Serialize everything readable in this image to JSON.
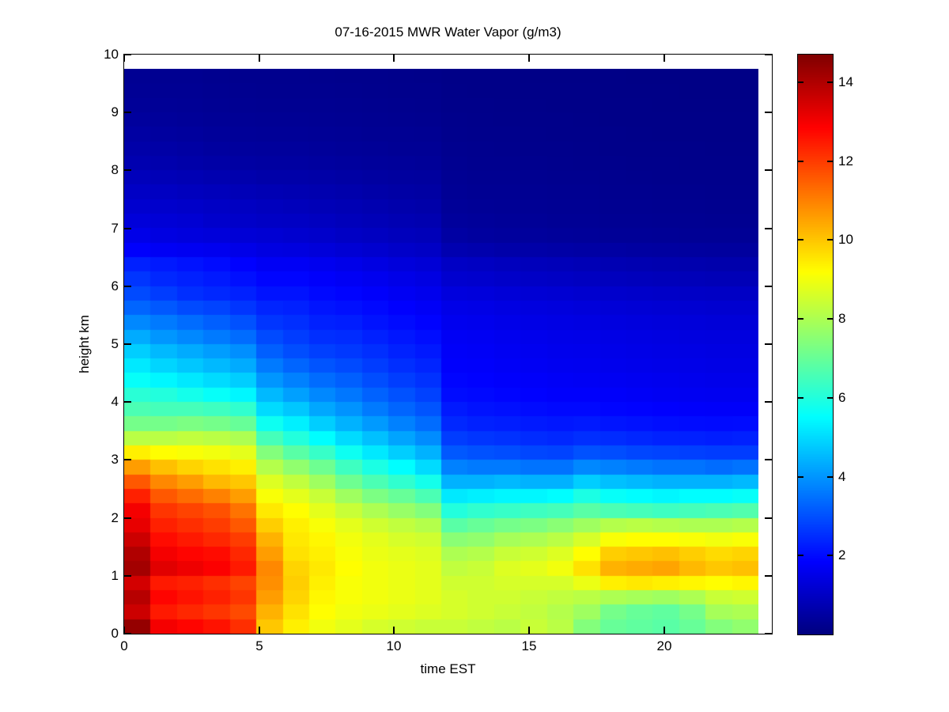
{
  "figure": {
    "background": "#ffffff"
  },
  "chart_data": {
    "type": "heatmap",
    "title": "07-16-2015 MWR Water Vapor (g/m3)",
    "xlabel": "time EST",
    "ylabel": "height km",
    "xlim": [
      0,
      24
    ],
    "ylim": [
      0,
      10
    ],
    "xtick_values": [
      0,
      5,
      10,
      15,
      20
    ],
    "xtick_labels": [
      "0",
      "5",
      "10",
      "15",
      "20"
    ],
    "ytick_values": [
      0,
      1,
      2,
      3,
      4,
      5,
      6,
      7,
      8,
      9,
      10
    ],
    "ytick_labels": [
      "0",
      "1",
      "2",
      "3",
      "4",
      "5",
      "6",
      "7",
      "8",
      "9",
      "10"
    ],
    "grid_on": false,
    "legend": "colorbar-right",
    "colorbar": {
      "tick_values": [
        2,
        4,
        6,
        8,
        10,
        12,
        14
      ],
      "tick_labels": [
        "2",
        "4",
        "6",
        "8",
        "10",
        "12",
        "14"
      ],
      "vmin": 0,
      "vmax": 14.7
    },
    "colormap": {
      "name": "jet",
      "stops": [
        [
          0.0,
          "#000080"
        ],
        [
          0.125,
          "#0000ff"
        ],
        [
          0.375,
          "#00ffff"
        ],
        [
          0.625,
          "#ffff00"
        ],
        [
          0.875,
          "#ff0000"
        ],
        [
          1.0,
          "#800000"
        ]
      ]
    },
    "grid": {
      "hours": [
        0,
        1,
        2,
        3,
        4,
        5,
        6,
        7,
        8,
        9,
        10,
        11,
        12,
        13,
        14,
        15,
        16,
        17,
        18,
        19,
        20,
        21,
        22,
        23
      ],
      "z0_km": 0,
      "dz_km": 0.25,
      "nz": 39,
      "x_extent": [
        0,
        23.5
      ],
      "z_extent": [
        0,
        9.75
      ]
    },
    "values_g_m3_by_hour_bottom_up": [
      [
        14.4,
        13.6,
        13.9,
        13.5,
        14.2,
        14.0,
        13.6,
        13.2,
        13.0,
        12.4,
        11.6,
        10.6,
        9.4,
        8.2,
        7.2,
        6.6,
        6.1,
        5.6,
        5.2,
        4.8,
        4.3,
        3.8,
        3.3,
        2.9,
        2.6,
        2.3,
        1.8,
        1.5,
        1.3,
        1.15,
        1.0,
        0.85,
        0.7,
        0.6,
        0.5,
        0.42,
        0.35,
        0.3,
        0.28
      ],
      [
        13.0,
        12.5,
        12.8,
        12.5,
        13.3,
        13.0,
        12.7,
        12.4,
        12.1,
        11.6,
        10.9,
        10.1,
        9.2,
        8.2,
        7.2,
        6.5,
        6.0,
        5.4,
        4.9,
        4.5,
        4.0,
        3.6,
        3.1,
        2.7,
        2.4,
        2.2,
        1.7,
        1.4,
        1.25,
        1.1,
        0.95,
        0.8,
        0.65,
        0.55,
        0.45,
        0.38,
        0.32,
        0.28,
        0.25
      ],
      [
        12.8,
        12.3,
        12.6,
        12.4,
        13.1,
        12.8,
        12.5,
        12.2,
        11.9,
        11.3,
        10.6,
        9.8,
        9.1,
        8.3,
        7.3,
        6.5,
        5.8,
        5.2,
        4.7,
        4.3,
        3.8,
        3.4,
        2.9,
        2.5,
        2.3,
        2.1,
        1.65,
        1.35,
        1.2,
        1.05,
        0.9,
        0.75,
        0.6,
        0.5,
        0.42,
        0.35,
        0.3,
        0.27,
        0.24
      ],
      [
        12.6,
        12.1,
        12.4,
        12.2,
        12.9,
        12.7,
        12.3,
        12.0,
        11.7,
        11.0,
        10.2,
        9.6,
        9.0,
        8.2,
        7.2,
        6.4,
        5.6,
        5.0,
        4.5,
        4.1,
        3.6,
        3.2,
        2.8,
        2.4,
        2.2,
        2.0,
        1.6,
        1.3,
        1.1,
        1.0,
        0.85,
        0.7,
        0.55,
        0.45,
        0.38,
        0.32,
        0.28,
        0.25,
        0.22
      ],
      [
        12.2,
        11.8,
        12.1,
        11.9,
        12.5,
        12.3,
        12.0,
        11.6,
        11.2,
        10.6,
        10.0,
        9.4,
        8.8,
        8.0,
        7.0,
        6.2,
        5.4,
        4.8,
        4.3,
        3.9,
        3.4,
        3.0,
        2.6,
        2.3,
        2.05,
        1.85,
        1.5,
        1.25,
        1.05,
        0.95,
        0.8,
        0.65,
        0.5,
        0.42,
        0.35,
        0.3,
        0.26,
        0.23,
        0.2
      ],
      [
        10.0,
        10.3,
        10.6,
        10.8,
        10.9,
        10.6,
        10.3,
        9.9,
        9.5,
        9.1,
        8.7,
        8.1,
        7.4,
        6.5,
        5.7,
        5.0,
        4.5,
        4.0,
        3.6,
        3.2,
        2.9,
        2.6,
        2.35,
        2.1,
        1.9,
        1.7,
        1.4,
        1.2,
        1.0,
        0.9,
        0.75,
        0.6,
        0.48,
        0.4,
        0.34,
        0.29,
        0.25,
        0.22,
        0.2
      ],
      [
        9.4,
        9.6,
        9.8,
        9.9,
        9.8,
        9.6,
        9.5,
        9.4,
        9.2,
        8.8,
        8.3,
        7.6,
        6.8,
        6.0,
        5.3,
        4.7,
        4.15,
        3.7,
        3.3,
        2.95,
        2.7,
        2.5,
        2.3,
        2.1,
        1.9,
        1.7,
        1.38,
        1.15,
        0.98,
        0.86,
        0.72,
        0.6,
        0.48,
        0.4,
        0.34,
        0.29,
        0.25,
        0.22,
        0.2
      ],
      [
        9.0,
        9.2,
        9.3,
        9.4,
        9.5,
        9.4,
        9.3,
        9.1,
        8.8,
        8.4,
        7.8,
        7.1,
        6.3,
        5.5,
        4.8,
        4.25,
        3.8,
        3.4,
        3.05,
        2.75,
        2.5,
        2.3,
        2.12,
        1.95,
        1.78,
        1.6,
        1.3,
        1.08,
        0.92,
        0.8,
        0.68,
        0.56,
        0.45,
        0.38,
        0.32,
        0.27,
        0.24,
        0.21,
        0.19
      ],
      [
        8.8,
        9.0,
        9.1,
        9.1,
        9.2,
        9.1,
        9.0,
        8.8,
        8.4,
        7.8,
        7.1,
        6.4,
        5.7,
        5.0,
        4.4,
        3.95,
        3.55,
        3.2,
        2.9,
        2.65,
        2.45,
        2.25,
        2.05,
        1.88,
        1.7,
        1.52,
        1.22,
        1.0,
        0.86,
        0.75,
        0.63,
        0.52,
        0.42,
        0.35,
        0.3,
        0.26,
        0.23,
        0.2,
        0.18
      ],
      [
        8.6,
        8.9,
        9.0,
        9.0,
        9.0,
        8.9,
        8.8,
        8.5,
        8.0,
        7.3,
        6.6,
        5.9,
        5.2,
        4.6,
        4.05,
        3.6,
        3.25,
        2.95,
        2.7,
        2.5,
        2.3,
        2.1,
        1.95,
        1.78,
        1.6,
        1.42,
        1.14,
        0.94,
        0.8,
        0.7,
        0.58,
        0.48,
        0.39,
        0.33,
        0.28,
        0.24,
        0.21,
        0.19,
        0.17
      ],
      [
        8.5,
        8.8,
        8.9,
        8.9,
        8.9,
        8.8,
        8.6,
        8.3,
        7.7,
        7.0,
        6.2,
        5.5,
        4.8,
        4.2,
        3.7,
        3.3,
        3.0,
        2.72,
        2.5,
        2.32,
        2.15,
        1.98,
        1.82,
        1.66,
        1.5,
        1.32,
        1.05,
        0.87,
        0.74,
        0.64,
        0.54,
        0.45,
        0.37,
        0.31,
        0.27,
        0.23,
        0.2,
        0.18,
        0.16
      ],
      [
        8.4,
        8.7,
        8.8,
        8.8,
        8.8,
        8.7,
        8.5,
        8.1,
        7.4,
        6.6,
        5.8,
        5.0,
        4.4,
        3.85,
        3.4,
        3.05,
        2.78,
        2.55,
        2.35,
        2.18,
        2.02,
        1.87,
        1.72,
        1.57,
        1.42,
        1.25,
        1.0,
        0.82,
        0.7,
        0.6,
        0.51,
        0.43,
        0.35,
        0.3,
        0.26,
        0.22,
        0.19,
        0.17,
        0.15
      ],
      [
        8.4,
        8.6,
        8.6,
        8.5,
        8.3,
        8.0,
        7.5,
        6.8,
        6.0,
        5.2,
        4.4,
        3.7,
        3.1,
        2.7,
        2.4,
        2.2,
        2.0,
        1.9,
        1.8,
        1.75,
        1.7,
        1.6,
        1.5,
        1.35,
        1.15,
        1.0,
        0.7,
        0.5,
        0.4,
        0.35,
        0.3,
        0.27,
        0.24,
        0.21,
        0.19,
        0.17,
        0.15,
        0.13,
        0.12
      ],
      [
        8.3,
        8.5,
        8.5,
        8.5,
        8.4,
        8.1,
        7.6,
        7.0,
        6.2,
        5.3,
        4.4,
        3.6,
        3.0,
        2.6,
        2.3,
        2.1,
        1.95,
        1.85,
        1.78,
        1.72,
        1.66,
        1.58,
        1.48,
        1.32,
        1.12,
        0.95,
        0.65,
        0.45,
        0.37,
        0.32,
        0.28,
        0.25,
        0.22,
        0.2,
        0.18,
        0.16,
        0.14,
        0.12,
        0.11
      ],
      [
        8.2,
        8.4,
        8.5,
        8.6,
        8.7,
        8.4,
        7.9,
        7.2,
        6.3,
        5.4,
        4.5,
        3.6,
        2.95,
        2.55,
        2.25,
        2.05,
        1.9,
        1.8,
        1.72,
        1.66,
        1.6,
        1.52,
        1.42,
        1.26,
        1.06,
        0.9,
        0.6,
        0.42,
        0.35,
        0.3,
        0.27,
        0.24,
        0.21,
        0.19,
        0.17,
        0.15,
        0.13,
        0.12,
        0.11
      ],
      [
        8.4,
        8.3,
        8.4,
        8.6,
        8.8,
        8.5,
        8.0,
        7.3,
        6.4,
        5.4,
        4.4,
        3.5,
        2.85,
        2.45,
        2.2,
        2.0,
        1.85,
        1.76,
        1.68,
        1.62,
        1.56,
        1.48,
        1.38,
        1.22,
        1.02,
        0.86,
        0.58,
        0.4,
        0.33,
        0.29,
        0.26,
        0.23,
        0.2,
        0.18,
        0.16,
        0.14,
        0.13,
        0.12,
        0.1
      ],
      [
        8.2,
        8.1,
        8.3,
        8.6,
        9.0,
        8.7,
        8.2,
        7.5,
        6.5,
        5.5,
        4.4,
        3.5,
        2.8,
        2.4,
        2.15,
        1.95,
        1.8,
        1.72,
        1.64,
        1.58,
        1.52,
        1.44,
        1.34,
        1.18,
        0.98,
        0.82,
        0.55,
        0.38,
        0.31,
        0.28,
        0.25,
        0.22,
        0.19,
        0.17,
        0.15,
        0.14,
        0.12,
        0.11,
        0.1
      ],
      [
        7.4,
        7.8,
        8.2,
        8.9,
        9.6,
        9.2,
        8.6,
        7.8,
        6.8,
        5.9,
        4.8,
        3.8,
        3.0,
        2.5,
        2.2,
        1.95,
        1.8,
        1.7,
        1.62,
        1.56,
        1.5,
        1.42,
        1.3,
        1.14,
        0.94,
        0.78,
        0.52,
        0.36,
        0.3,
        0.27,
        0.24,
        0.21,
        0.18,
        0.16,
        0.14,
        0.13,
        0.12,
        0.11,
        0.1
      ],
      [
        7.0,
        7.2,
        8.0,
        9.4,
        10.3,
        9.9,
        9.1,
        8.1,
        6.6,
        5.6,
        4.6,
        3.7,
        2.95,
        2.45,
        2.12,
        1.9,
        1.76,
        1.66,
        1.58,
        1.52,
        1.46,
        1.38,
        1.26,
        1.1,
        0.9,
        0.74,
        0.5,
        0.34,
        0.28,
        0.25,
        0.22,
        0.2,
        0.17,
        0.15,
        0.14,
        0.12,
        0.11,
        0.1,
        0.1
      ],
      [
        6.9,
        7.0,
        7.9,
        9.5,
        10.4,
        10.0,
        9.2,
        8.2,
        6.5,
        5.5,
        4.5,
        3.6,
        2.85,
        2.38,
        2.08,
        1.86,
        1.72,
        1.63,
        1.55,
        1.49,
        1.43,
        1.35,
        1.23,
        1.07,
        0.87,
        0.71,
        0.48,
        0.33,
        0.27,
        0.24,
        0.21,
        0.19,
        0.16,
        0.15,
        0.13,
        0.12,
        0.11,
        0.1,
        0.09
      ],
      [
        6.8,
        6.9,
        7.8,
        9.4,
        10.5,
        10.1,
        9.2,
        8.1,
        6.4,
        5.4,
        4.4,
        3.5,
        2.8,
        2.32,
        2.02,
        1.82,
        1.68,
        1.6,
        1.52,
        1.46,
        1.4,
        1.32,
        1.2,
        1.04,
        0.84,
        0.68,
        0.46,
        0.32,
        0.26,
        0.23,
        0.2,
        0.18,
        0.16,
        0.14,
        0.12,
        0.11,
        0.1,
        0.1,
        0.09
      ],
      [
        7.0,
        7.2,
        8.0,
        9.3,
        10.2,
        9.9,
        9.1,
        8.0,
        6.5,
        5.5,
        4.4,
        3.5,
        2.75,
        2.3,
        2.0,
        1.78,
        1.65,
        1.57,
        1.5,
        1.44,
        1.38,
        1.3,
        1.18,
        1.02,
        0.82,
        0.66,
        0.45,
        0.31,
        0.26,
        0.23,
        0.2,
        0.18,
        0.15,
        0.14,
        0.12,
        0.11,
        0.1,
        0.09,
        0.09
      ],
      [
        7.4,
        7.9,
        8.4,
        9.2,
        10.0,
        9.7,
        9.0,
        8.0,
        6.6,
        5.5,
        4.4,
        3.4,
        2.7,
        2.25,
        1.98,
        1.76,
        1.63,
        1.55,
        1.48,
        1.42,
        1.36,
        1.28,
        1.16,
        1.0,
        0.8,
        0.64,
        0.44,
        0.3,
        0.25,
        0.22,
        0.19,
        0.17,
        0.15,
        0.13,
        0.12,
        0.11,
        0.1,
        0.09,
        0.08
      ],
      [
        7.6,
        8.0,
        8.5,
        9.3,
        10.1,
        9.8,
        9.1,
        8.1,
        6.7,
        5.6,
        4.5,
        3.5,
        2.7,
        2.3,
        2.0,
        1.76,
        1.63,
        1.55,
        1.48,
        1.42,
        1.36,
        1.28,
        1.16,
        1.0,
        0.8,
        0.64,
        0.44,
        0.3,
        0.25,
        0.22,
        0.19,
        0.17,
        0.15,
        0.13,
        0.12,
        0.11,
        0.1,
        0.09,
        0.08
      ]
    ]
  }
}
